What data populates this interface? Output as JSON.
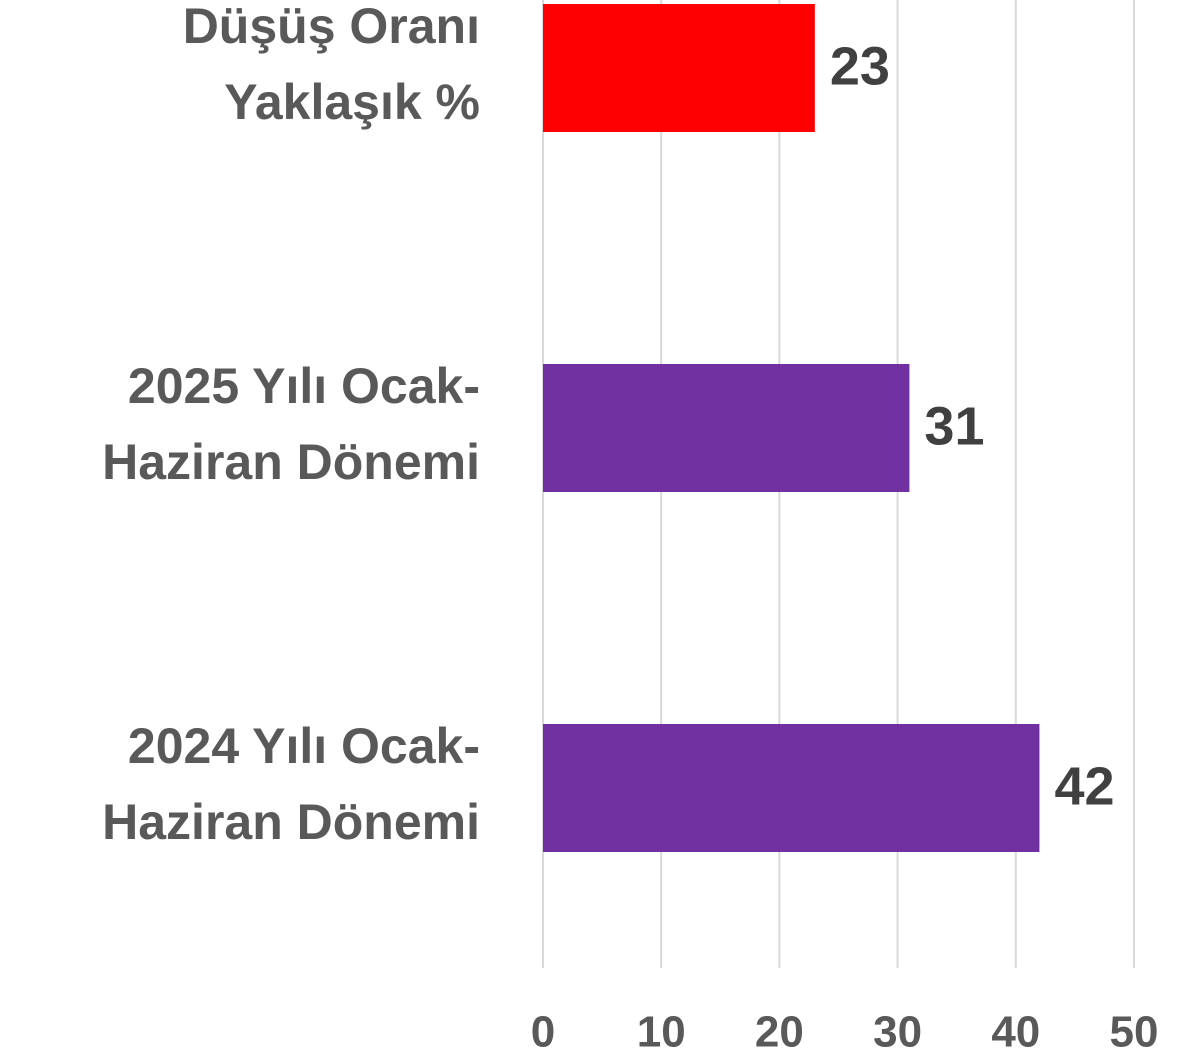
{
  "chart_data": {
    "type": "barh",
    "categories": [
      [
        "Düşüş Oranı",
        "Yaklaşık %"
      ],
      [
        "2025 Yılı Ocak-",
        "Haziran Dönemi"
      ],
      [
        "2024 Yılı Ocak-",
        "Haziran Dönemi"
      ]
    ],
    "values": [
      23,
      31,
      42
    ],
    "colors": [
      "#ff0000",
      "#7030a0",
      "#7030a0"
    ],
    "xlim": [
      0,
      50
    ],
    "xticks": [
      0,
      10,
      20,
      30,
      40,
      50
    ],
    "grid": true
  }
}
